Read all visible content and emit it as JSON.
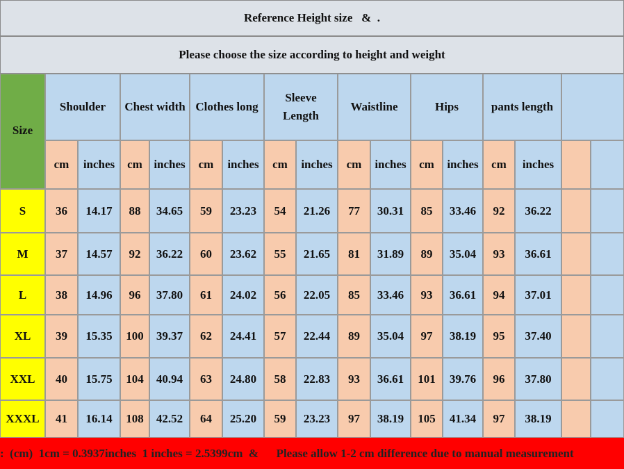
{
  "title": "Reference Height size   &  .",
  "subtitle": "Please choose the size according to height and weight",
  "table": {
    "size_header": "Size",
    "groups": [
      "Shoulder",
      "Chest width",
      "Clothes long",
      "Sleeve Length",
      "Waistline",
      "Hips",
      "pants length"
    ],
    "units": [
      "cm",
      "inches",
      "cm",
      "inches",
      "cm",
      "inches",
      "cm",
      "inches",
      "cm",
      "inches",
      "cm",
      "inches",
      "cm",
      "inches"
    ],
    "rows": [
      [
        "S",
        "36",
        "14.17",
        "88",
        "34.65",
        "59",
        "23.23",
        "54",
        "21.26",
        "77",
        "30.31",
        "85",
        "33.46",
        "92",
        "36.22"
      ],
      [
        "M",
        "37",
        "14.57",
        "92",
        "36.22",
        "60",
        "23.62",
        "55",
        "21.65",
        "81",
        "31.89",
        "89",
        "35.04",
        "93",
        "36.61"
      ],
      [
        "L",
        "38",
        "14.96",
        "96",
        "37.80",
        "61",
        "24.02",
        "56",
        "22.05",
        "85",
        "33.46",
        "93",
        "36.61",
        "94",
        "37.01"
      ],
      [
        "XL",
        "39",
        "15.35",
        "100",
        "39.37",
        "62",
        "24.41",
        "57",
        "22.44",
        "89",
        "35.04",
        "97",
        "38.19",
        "95",
        "37.40"
      ],
      [
        "XXL",
        "40",
        "15.75",
        "104",
        "40.94",
        "63",
        "24.80",
        "58",
        "22.83",
        "93",
        "36.61",
        "101",
        "39.76",
        "96",
        "37.80"
      ],
      [
        "XXXL",
        "41",
        "16.14",
        "108",
        "42.52",
        "64",
        "25.20",
        "59",
        "23.23",
        "97",
        "38.19",
        "105",
        "41.34",
        "97",
        "38.19"
      ]
    ]
  },
  "footer": {
    "text": ":  (cm)  1cm = 0.3937inches  1 inches = 2.5399cm  &      Please allow 1-2 cm difference due to manual measurement"
  }
}
